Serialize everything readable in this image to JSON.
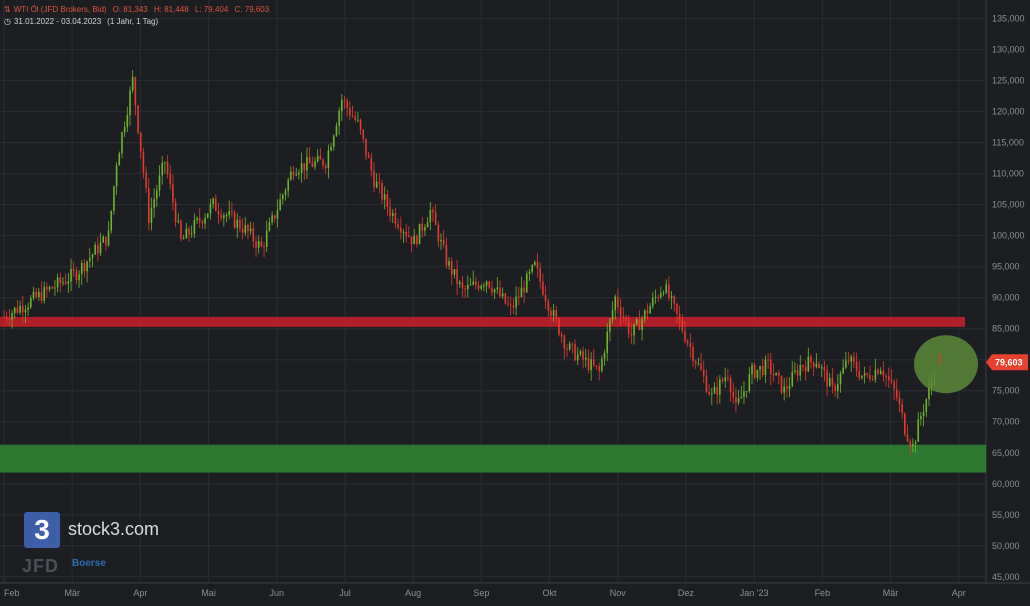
{
  "header": {
    "instrument": "WTI Öl (JFD Brokers, Bid)",
    "ohlc": {
      "o": "O: 81,343",
      "h": "H: 81,448",
      "l": "L: 79,404",
      "c": "C: 79,603"
    },
    "date_range": "31.01.2022 - 03.04.2023",
    "period": "(1 Jahr, 1 Tag)"
  },
  "branding": {
    "logo_mark": "3",
    "logo_text": "stock3.com",
    "broker_text": "JFD",
    "exchange_text": "Boerse"
  },
  "colors": {
    "background": "#1c1e22",
    "grid": "#2a2d33",
    "up_candle": "#6fb52e",
    "down_candle": "#e33b2e",
    "resistance_zone": "#b8202a",
    "support_zone": "#2e7d32",
    "highlight_circle": "#5a8a3a",
    "price_badge": "#e8412f"
  },
  "chart_data": {
    "type": "candlestick",
    "x_labels": [
      "Feb",
      "Mär",
      "Apr",
      "Mai",
      "Jun",
      "Jul",
      "Aug",
      "Sep",
      "Okt",
      "Nov",
      "Dez",
      "Jan '23",
      "Feb",
      "Mär",
      "Apr"
    ],
    "y_ticks": [
      "45,000",
      "50,000",
      "55,000",
      "60,000",
      "65,000",
      "70,000",
      "75,000",
      "80,000",
      "85,000",
      "90,000",
      "95,000",
      "100,000",
      "105,000",
      "110,000",
      "115,000",
      "120,000",
      "125,000",
      "130,000",
      "135,000"
    ],
    "ylim": [
      44,
      138
    ],
    "last_price": "79,603",
    "last_price_value": 79.6,
    "zones": [
      {
        "name": "resistance",
        "from": 85.3,
        "to": 86.9
      },
      {
        "name": "support",
        "from": 61.8,
        "to": 66.3
      }
    ],
    "monthly_path": [
      [
        0,
        87
      ],
      [
        4,
        90
      ],
      [
        9,
        94
      ],
      [
        13,
        100
      ],
      [
        14,
        112
      ],
      [
        16,
        125
      ],
      [
        18,
        103
      ],
      [
        20,
        112
      ],
      [
        22,
        99
      ],
      [
        26,
        105
      ],
      [
        30,
        101
      ],
      [
        32,
        98
      ],
      [
        36,
        111
      ],
      [
        40,
        112
      ],
      [
        42,
        122
      ],
      [
        44,
        118
      ],
      [
        46,
        109
      ],
      [
        48,
        104
      ],
      [
        51,
        99
      ],
      [
        53,
        104
      ],
      [
        55,
        96
      ],
      [
        57,
        91
      ],
      [
        60,
        93
      ],
      [
        63,
        88
      ],
      [
        66,
        95
      ],
      [
        68,
        88
      ],
      [
        70,
        82
      ],
      [
        72,
        80
      ],
      [
        74,
        78
      ],
      [
        76,
        90
      ],
      [
        78,
        84
      ],
      [
        80,
        88
      ],
      [
        82,
        92
      ],
      [
        84,
        86
      ],
      [
        86,
        80
      ],
      [
        88,
        74
      ],
      [
        90,
        78
      ],
      [
        91,
        72
      ],
      [
        93,
        78
      ],
      [
        95,
        79
      ],
      [
        97,
        75
      ],
      [
        99,
        79
      ],
      [
        101,
        80
      ],
      [
        103,
        75
      ],
      [
        105,
        80
      ],
      [
        107,
        77
      ],
      [
        109,
        79
      ],
      [
        111,
        74
      ],
      [
        112,
        69
      ],
      [
        113,
        66
      ],
      [
        114,
        71
      ],
      [
        115,
        75
      ],
      [
        116,
        79.6
      ]
    ]
  }
}
